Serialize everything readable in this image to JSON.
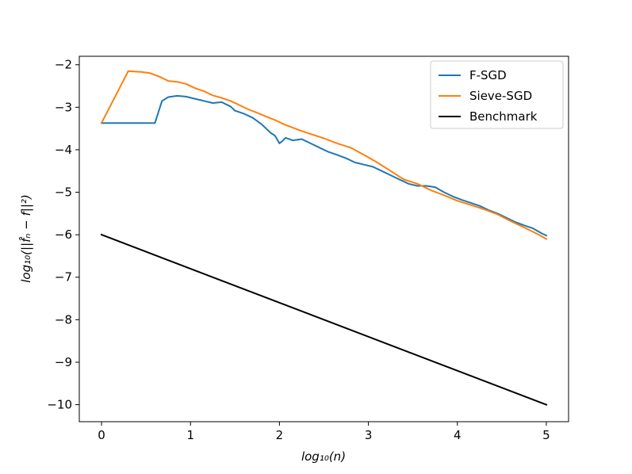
{
  "chart_data": {
    "type": "line",
    "xlabel": "log₁₀(n)",
    "ylabel": "log₁₀(||f̂ₙ − f||²)",
    "xlim": [
      -0.25,
      5.25
    ],
    "ylim": [
      -10.4,
      -1.8
    ],
    "x_ticks": [
      0,
      1,
      2,
      3,
      4,
      5
    ],
    "x_tick_labels": [
      "0",
      "1",
      "2",
      "3",
      "4",
      "5"
    ],
    "y_ticks": [
      -2,
      -3,
      -4,
      -5,
      -6,
      -7,
      -8,
      -9,
      -10
    ],
    "y_tick_labels": [
      "−2",
      "−3",
      "−4",
      "−5",
      "−6",
      "−7",
      "−8",
      "−9",
      "−10"
    ],
    "grid": false,
    "legend_position": "top-right",
    "series": [
      {
        "name": "F-SGD",
        "color": "#1f77b4",
        "points": [
          [
            0,
            -3.37
          ],
          [
            0.6,
            -3.37
          ],
          [
            0.68,
            -2.85
          ],
          [
            0.75,
            -2.76
          ],
          [
            0.85,
            -2.73
          ],
          [
            0.95,
            -2.75
          ],
          [
            1.05,
            -2.8
          ],
          [
            1.15,
            -2.85
          ],
          [
            1.25,
            -2.9
          ],
          [
            1.35,
            -2.88
          ],
          [
            1.45,
            -2.98
          ],
          [
            1.5,
            -3.08
          ],
          [
            1.6,
            -3.15
          ],
          [
            1.7,
            -3.25
          ],
          [
            1.8,
            -3.4
          ],
          [
            1.9,
            -3.6
          ],
          [
            1.95,
            -3.67
          ],
          [
            2.0,
            -3.85
          ],
          [
            2.03,
            -3.8
          ],
          [
            2.07,
            -3.72
          ],
          [
            2.15,
            -3.78
          ],
          [
            2.25,
            -3.75
          ],
          [
            2.35,
            -3.85
          ],
          [
            2.45,
            -3.95
          ],
          [
            2.55,
            -4.05
          ],
          [
            2.65,
            -4.12
          ],
          [
            2.75,
            -4.2
          ],
          [
            2.85,
            -4.3
          ],
          [
            2.95,
            -4.35
          ],
          [
            3.05,
            -4.4
          ],
          [
            3.15,
            -4.5
          ],
          [
            3.25,
            -4.6
          ],
          [
            3.35,
            -4.7
          ],
          [
            3.45,
            -4.8
          ],
          [
            3.55,
            -4.85
          ],
          [
            3.65,
            -4.85
          ],
          [
            3.75,
            -4.88
          ],
          [
            3.85,
            -5.0
          ],
          [
            3.95,
            -5.1
          ],
          [
            4.05,
            -5.18
          ],
          [
            4.15,
            -5.25
          ],
          [
            4.25,
            -5.32
          ],
          [
            4.35,
            -5.42
          ],
          [
            4.45,
            -5.5
          ],
          [
            4.55,
            -5.6
          ],
          [
            4.65,
            -5.7
          ],
          [
            4.75,
            -5.78
          ],
          [
            4.85,
            -5.85
          ],
          [
            4.95,
            -5.97
          ],
          [
            5.0,
            -6.02
          ]
        ]
      },
      {
        "name": "Sieve-SGD",
        "color": "#ff7f0e",
        "points": [
          [
            0,
            -3.37
          ],
          [
            0.3,
            -2.15
          ],
          [
            0.45,
            -2.17
          ],
          [
            0.55,
            -2.2
          ],
          [
            0.65,
            -2.28
          ],
          [
            0.75,
            -2.38
          ],
          [
            0.85,
            -2.4
          ],
          [
            0.95,
            -2.45
          ],
          [
            1.05,
            -2.55
          ],
          [
            1.15,
            -2.62
          ],
          [
            1.25,
            -2.72
          ],
          [
            1.35,
            -2.78
          ],
          [
            1.45,
            -2.85
          ],
          [
            1.55,
            -2.95
          ],
          [
            1.65,
            -3.05
          ],
          [
            1.75,
            -3.13
          ],
          [
            1.85,
            -3.22
          ],
          [
            1.95,
            -3.3
          ],
          [
            2.05,
            -3.4
          ],
          [
            2.15,
            -3.48
          ],
          [
            2.25,
            -3.56
          ],
          [
            2.35,
            -3.63
          ],
          [
            2.5,
            -3.73
          ],
          [
            2.65,
            -3.85
          ],
          [
            2.8,
            -3.95
          ],
          [
            2.95,
            -4.12
          ],
          [
            3.1,
            -4.3
          ],
          [
            3.25,
            -4.5
          ],
          [
            3.4,
            -4.7
          ],
          [
            3.55,
            -4.8
          ],
          [
            3.7,
            -4.95
          ],
          [
            3.85,
            -5.07
          ],
          [
            4.0,
            -5.2
          ],
          [
            4.15,
            -5.3
          ],
          [
            4.3,
            -5.4
          ],
          [
            4.45,
            -5.52
          ],
          [
            4.6,
            -5.68
          ],
          [
            4.75,
            -5.83
          ],
          [
            4.9,
            -5.98
          ],
          [
            5.0,
            -6.1
          ]
        ]
      },
      {
        "name": "Benchmark",
        "color": "#000000",
        "points": [
          [
            0,
            -6.0
          ],
          [
            5.0,
            -10.0
          ]
        ]
      }
    ]
  }
}
